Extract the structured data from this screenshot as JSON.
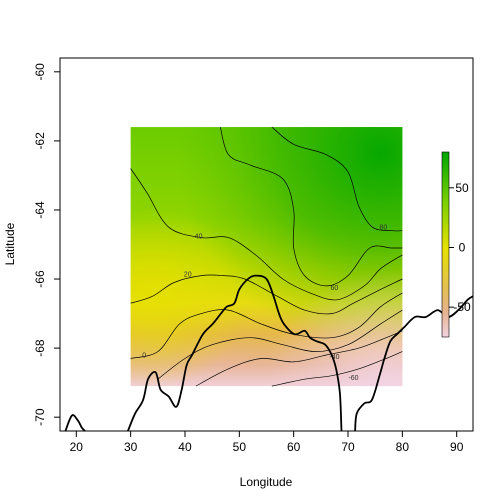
{
  "chart_data": {
    "type": "heatmap",
    "xlabel": "Longitude",
    "ylabel": "Latitude",
    "xlim": [
      17,
      93
    ],
    "ylim": [
      -70.4,
      -59.6
    ],
    "x_ticks": [
      20,
      30,
      40,
      50,
      60,
      70,
      80,
      90
    ],
    "y_ticks": [
      -60,
      -62,
      -64,
      -66,
      -68,
      -70
    ],
    "grid": false,
    "field_extent": {
      "lon": [
        30,
        80
      ],
      "lat": [
        -69.1,
        -61.6
      ]
    },
    "colorbar": {
      "ticks": [
        50,
        0,
        -50
      ],
      "range": [
        -75,
        80
      ],
      "colors": {
        "low": "#f3d2e2",
        "mid_low": "#e2ad6a",
        "zero": "#e6e000",
        "high": "#00a600"
      }
    },
    "contour_labels": [
      {
        "text": "80",
        "lon": 76.5,
        "lat": -64.5
      },
      {
        "text": "40",
        "lon": 42.5,
        "lat": -64.75
      },
      {
        "text": "60",
        "lon": 67.5,
        "lat": -66.25
      },
      {
        "text": "20",
        "lon": 40.5,
        "lat": -65.85
      },
      {
        "text": "0",
        "lon": 32.5,
        "lat": -68.2
      },
      {
        "text": "-40",
        "lon": 67.5,
        "lat": -68.25
      },
      {
        "text": "-60",
        "lon": 71.0,
        "lat": -68.85
      }
    ],
    "contour_lines": [
      {
        "level": 80,
        "points": [
          [
            56,
            -61.6
          ],
          [
            60,
            -62.1
          ],
          [
            66,
            -62.4
          ],
          [
            70,
            -62.9
          ],
          [
            72,
            -63.9
          ],
          [
            74.5,
            -64.5
          ],
          [
            78,
            -64.6
          ],
          [
            80,
            -64.6
          ]
        ]
      },
      {
        "level": 60,
        "points": [
          [
            46.5,
            -61.6
          ],
          [
            48,
            -62.4
          ],
          [
            52,
            -62.7
          ],
          [
            58,
            -63.1
          ],
          [
            60,
            -64.0
          ],
          [
            60,
            -65.1
          ],
          [
            62,
            -65.9
          ],
          [
            66,
            -66.2
          ],
          [
            70,
            -65.9
          ],
          [
            74,
            -65.1
          ],
          [
            78,
            -65.1
          ],
          [
            80,
            -65.1
          ]
        ]
      },
      {
        "level": 40,
        "points": [
          [
            30,
            -62.8
          ],
          [
            33,
            -63.5
          ],
          [
            37,
            -64.5
          ],
          [
            43,
            -64.8
          ],
          [
            48,
            -64.8
          ],
          [
            53,
            -65.3
          ],
          [
            58,
            -66.0
          ],
          [
            63,
            -66.4
          ],
          [
            68,
            -66.6
          ],
          [
            73,
            -66.2
          ],
          [
            76,
            -65.7
          ],
          [
            80,
            -65.3
          ]
        ]
      },
      {
        "level": 20,
        "points": [
          [
            30,
            -66.7
          ],
          [
            34,
            -66.5
          ],
          [
            38,
            -66.1
          ],
          [
            43,
            -65.9
          ],
          [
            47,
            -65.9
          ],
          [
            51,
            -66.0
          ],
          [
            57,
            -66.5
          ],
          [
            62,
            -66.9
          ],
          [
            67,
            -67.0
          ],
          [
            71,
            -66.7
          ],
          [
            76,
            -66.3
          ],
          [
            80,
            -66.0
          ]
        ]
      },
      {
        "level": 0,
        "points": [
          [
            30,
            -68.3
          ],
          [
            35,
            -68.1
          ],
          [
            39,
            -67.3
          ],
          [
            43,
            -67.0
          ],
          [
            48,
            -66.9
          ],
          [
            54,
            -67.3
          ],
          [
            60,
            -67.6
          ],
          [
            67,
            -67.7
          ],
          [
            72,
            -67.4
          ],
          [
            76,
            -66.8
          ],
          [
            80,
            -66.4
          ]
        ]
      },
      {
        "level": -20,
        "points": [
          [
            35,
            -68.9
          ],
          [
            40,
            -68.3
          ],
          [
            45,
            -67.9
          ],
          [
            52,
            -67.7
          ],
          [
            58,
            -67.9
          ],
          [
            64,
            -68.1
          ],
          [
            70,
            -67.9
          ],
          [
            76,
            -67.3
          ],
          [
            80,
            -66.9
          ]
        ]
      },
      {
        "level": -40,
        "points": [
          [
            42,
            -69.1
          ],
          [
            48,
            -68.6
          ],
          [
            54,
            -68.3
          ],
          [
            60,
            -68.4
          ],
          [
            66,
            -68.2
          ],
          [
            72,
            -68.0
          ],
          [
            77,
            -67.7
          ],
          [
            80,
            -67.5
          ]
        ]
      },
      {
        "level": -60,
        "points": [
          [
            56,
            -69.1
          ],
          [
            62,
            -68.9
          ],
          [
            67,
            -68.8
          ],
          [
            72,
            -68.6
          ],
          [
            77,
            -68.3
          ],
          [
            80,
            -68.1
          ]
        ]
      }
    ],
    "coastline": [
      [
        [
          18.0,
          -70.4
        ],
        [
          19.2,
          -69.95
        ],
        [
          20.3,
          -70.1
        ],
        [
          21.0,
          -70.3
        ],
        [
          21.6,
          -70.4
        ]
      ],
      [
        [
          29.5,
          -70.4
        ],
        [
          30.8,
          -69.9
        ],
        [
          32.3,
          -69.5
        ],
        [
          33.2,
          -68.9
        ],
        [
          34.6,
          -68.7
        ],
        [
          35.5,
          -69.2
        ],
        [
          37.0,
          -69.4
        ],
        [
          38.4,
          -69.7
        ],
        [
          39.4,
          -69.2
        ],
        [
          40.3,
          -68.5
        ],
        [
          41.3,
          -68.2
        ],
        [
          43.3,
          -67.6
        ],
        [
          45.1,
          -67.3
        ],
        [
          46.6,
          -67.0
        ],
        [
          47.7,
          -66.8
        ],
        [
          49.1,
          -66.7
        ],
        [
          50.0,
          -66.3
        ],
        [
          51.6,
          -66.0
        ],
        [
          53.0,
          -65.9
        ],
        [
          55.0,
          -66.0
        ],
        [
          56.3,
          -66.5
        ],
        [
          57.3,
          -67.0
        ],
        [
          58.2,
          -67.3
        ],
        [
          60.2,
          -67.6
        ],
        [
          62.0,
          -67.5
        ],
        [
          63.0,
          -67.7
        ],
        [
          64.2,
          -67.8
        ],
        [
          65.8,
          -67.9
        ],
        [
          67.0,
          -68.2
        ],
        [
          67.8,
          -68.6
        ],
        [
          68.5,
          -69.3
        ],
        [
          68.8,
          -70.4
        ]
      ],
      [
        [
          71.3,
          -70.4
        ],
        [
          71.6,
          -69.9
        ],
        [
          73.0,
          -69.6
        ],
        [
          74.4,
          -69.5
        ],
        [
          75.8,
          -68.8
        ],
        [
          76.7,
          -68.3
        ],
        [
          77.8,
          -67.8
        ],
        [
          79.0,
          -67.6
        ],
        [
          80.3,
          -67.4
        ],
        [
          82.3,
          -67.1
        ],
        [
          84.3,
          -67.1
        ],
        [
          86.5,
          -66.9
        ],
        [
          88.4,
          -67.1
        ],
        [
          90.3,
          -66.9
        ],
        [
          92.0,
          -66.6
        ],
        [
          93.0,
          -66.5
        ]
      ]
    ]
  }
}
